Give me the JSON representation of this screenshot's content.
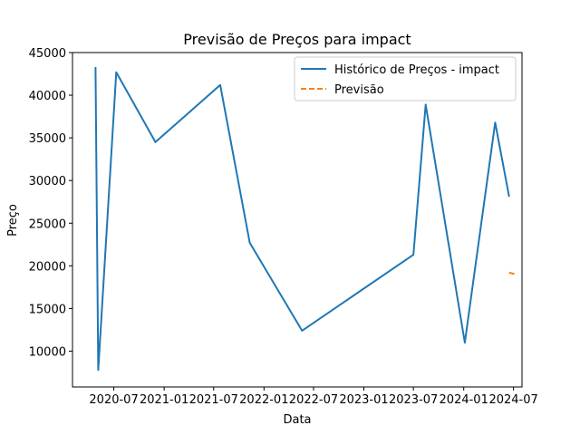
{
  "chart_data": {
    "type": "line",
    "title": "Previsão de Preços para impact",
    "xlabel": "Data",
    "ylabel": "Preço",
    "ylim": [
      5800,
      45000
    ],
    "xlim": [
      "2020-02-01",
      "2024-08-01"
    ],
    "yticks": [
      10000,
      15000,
      20000,
      25000,
      30000,
      35000,
      40000,
      45000
    ],
    "xticks": [
      "2020-07",
      "2021-01",
      "2021-07",
      "2022-01",
      "2022-07",
      "2023-01",
      "2023-07",
      "2024-01",
      "2024-07"
    ],
    "grid": false,
    "legend_position": "top-right",
    "colors": {
      "historical": "#1f77b4",
      "forecast": "#ff7f0e"
    },
    "series": [
      {
        "name": "Histórico de Preços - impact",
        "style": "solid",
        "points": [
          {
            "x": "2020-04-25",
            "y": 43300
          },
          {
            "x": "2020-05-05",
            "y": 7800
          },
          {
            "x": "2020-07-10",
            "y": 42700
          },
          {
            "x": "2020-11-30",
            "y": 34500
          },
          {
            "x": "2021-07-25",
            "y": 41200
          },
          {
            "x": "2021-11-10",
            "y": 22700
          },
          {
            "x": "2022-05-20",
            "y": 12400
          },
          {
            "x": "2023-07-01",
            "y": 21300
          },
          {
            "x": "2023-08-15",
            "y": 38900
          },
          {
            "x": "2024-01-05",
            "y": 11000
          },
          {
            "x": "2024-04-25",
            "y": 36800
          },
          {
            "x": "2024-06-15",
            "y": 28100
          }
        ]
      },
      {
        "name": "Previsão",
        "style": "dashed",
        "points": [
          {
            "x": "2024-06-15",
            "y": 19200
          },
          {
            "x": "2024-07-10",
            "y": 19000
          }
        ]
      }
    ]
  }
}
